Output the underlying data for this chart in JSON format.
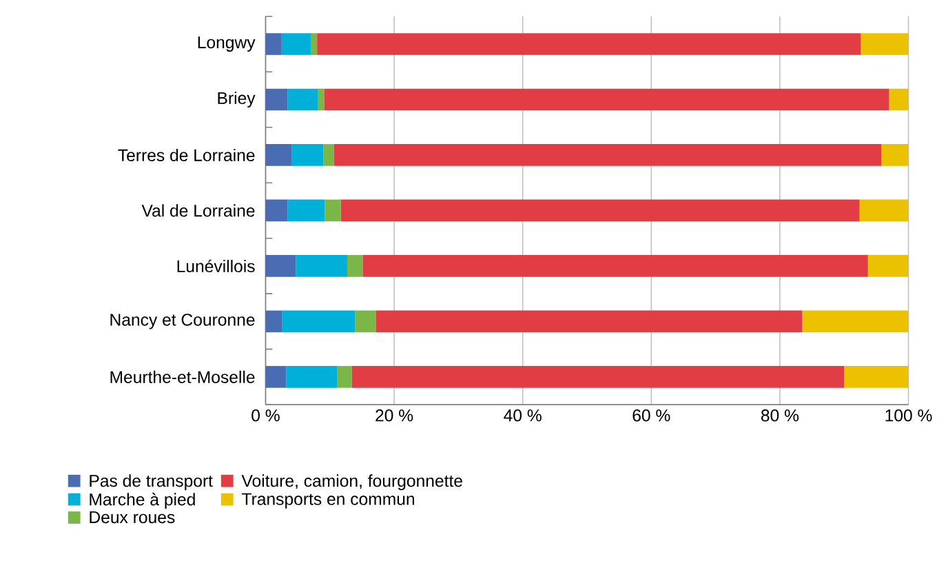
{
  "chart_data": {
    "type": "bar",
    "orientation": "horizontal",
    "stacked": true,
    "categories": [
      "Longwy",
      "Briey",
      "Terres de Lorraine",
      "Val de Lorraine",
      "Lunévillois",
      "Nancy et Couronne",
      "Meurthe-et-Moselle"
    ],
    "series": [
      {
        "name": "Pas de transport",
        "color": "#4a6cb3",
        "values": [
          2.5,
          3.4,
          4.1,
          3.4,
          4.7,
          2.6,
          3.2
        ]
      },
      {
        "name": "Marche à pied",
        "color": "#00b0d8",
        "values": [
          4.6,
          4.7,
          4.9,
          5.8,
          8.0,
          11.3,
          7.9
        ]
      },
      {
        "name": "Deux roues",
        "color": "#7ab648",
        "values": [
          0.9,
          1.0,
          1.6,
          2.5,
          2.4,
          3.3,
          2.3
        ]
      },
      {
        "name": "Voiture, camion, fourgonnette",
        "color": "#e23d44",
        "values": [
          84.6,
          87.9,
          85.2,
          80.7,
          78.6,
          66.3,
          76.6
        ]
      },
      {
        "name": "Transports en commun",
        "color": "#ecc100",
        "values": [
          7.4,
          3.0,
          4.2,
          7.6,
          6.3,
          16.5,
          10.0
        ]
      }
    ],
    "xlim": [
      0,
      100
    ],
    "xticks": [
      {
        "value": 0,
        "label": "0 %"
      },
      {
        "value": 20,
        "label": "20 %"
      },
      {
        "value": 40,
        "label": "40 %"
      },
      {
        "value": 60,
        "label": "60 %"
      },
      {
        "value": 80,
        "label": "80 %"
      },
      {
        "value": 100,
        "label": "100 %"
      }
    ],
    "grid": "x",
    "legend": "bottom"
  }
}
